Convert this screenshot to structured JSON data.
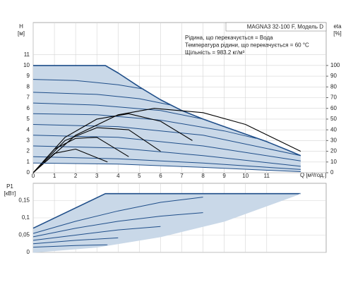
{
  "chart_data": [
    {
      "type": "line",
      "title": "MAGNA3 32-100 F, Модель D",
      "annotations": [
        "Рідина, що перекачується = Вода",
        "Температура рідини, що перекачується = 60 °C",
        "Щільність = 983.2 кг/м³"
      ],
      "y_label": "H",
      "y_unit": "[м]",
      "y2_label": "eta",
      "y2_unit": "[%]",
      "x_label": "Q [м³/год.]",
      "xlim": [
        0,
        13.8
      ],
      "ylim": [
        0,
        14
      ],
      "y2lim": [
        0,
        140
      ],
      "xticks": [
        0,
        1,
        2,
        3,
        4,
        5,
        6,
        7,
        8,
        9,
        10,
        11
      ],
      "yticks": [
        0,
        1,
        2,
        3,
        4,
        5,
        6,
        7,
        8,
        9,
        10,
        11
      ],
      "y2ticks": [
        0,
        10,
        20,
        30,
        40,
        50,
        60,
        70,
        80,
        90,
        100
      ],
      "grid": true,
      "fill": "#c9d8e8",
      "series": [
        {
          "color": "#1f4e89",
          "x": [
            0,
            3.4,
            4,
            5,
            6,
            7,
            8,
            9,
            10,
            11,
            12,
            12.6
          ],
          "values": [
            10,
            10,
            9.3,
            8.0,
            6.8,
            5.8,
            5.0,
            4.3,
            3.6,
            2.9,
            2.1,
            1.6
          ]
        },
        {
          "color": "#1f4e89",
          "x": [
            0,
            2,
            4,
            5.2
          ],
          "values": [
            8.7,
            8.6,
            8.2,
            7.8
          ]
        },
        {
          "color": "#1f4e89",
          "x": [
            0,
            3,
            5,
            6.5
          ],
          "values": [
            7.5,
            7.3,
            6.9,
            6.3
          ]
        },
        {
          "color": "#1f4e89",
          "x": [
            0,
            3,
            6,
            8
          ],
          "values": [
            6.5,
            6.3,
            5.8,
            5.0
          ]
        },
        {
          "color": "#1f4e89",
          "x": [
            0,
            3,
            6,
            9,
            10.5
          ],
          "values": [
            5.5,
            5.4,
            4.9,
            3.9,
            3.2
          ]
        },
        {
          "color": "#1f4e89",
          "x": [
            0,
            4,
            8,
            12.6
          ],
          "values": [
            4.5,
            4.3,
            3.5,
            1.6
          ]
        },
        {
          "color": "#1f4e89",
          "x": [
            0,
            4,
            8,
            12.6
          ],
          "values": [
            3.5,
            3.3,
            2.5,
            1.1
          ]
        },
        {
          "color": "#1f4e89",
          "x": [
            0,
            4,
            8,
            12.6
          ],
          "values": [
            2.5,
            2.3,
            1.6,
            0.6
          ]
        },
        {
          "color": "#1f4e89",
          "x": [
            0,
            4,
            8,
            12.6
          ],
          "values": [
            1.5,
            1.3,
            0.9,
            0.3
          ]
        },
        {
          "color": "#000000",
          "axis": "y2",
          "x": [
            0,
            2,
            4,
            5.7,
            8,
            10,
            12.6
          ],
          "values": [
            0,
            35,
            54,
            60,
            56,
            45,
            20
          ]
        },
        {
          "color": "#000000",
          "axis": "y2",
          "x": [
            0,
            1.5,
            3,
            4.5,
            6,
            7.5
          ],
          "values": [
            0,
            33,
            50,
            55,
            48,
            30
          ]
        },
        {
          "color": "#000000",
          "axis": "y2",
          "x": [
            0,
            1.5,
            3,
            4.5,
            6
          ],
          "values": [
            0,
            30,
            42,
            40,
            20
          ]
        },
        {
          "color": "#000000",
          "axis": "y2",
          "x": [
            0,
            1,
            2,
            3,
            4.5
          ],
          "values": [
            0,
            22,
            32,
            33,
            15
          ]
        },
        {
          "color": "#000000",
          "axis": "y2",
          "x": [
            0,
            1,
            2,
            3.5
          ],
          "values": [
            0,
            18,
            22,
            10
          ]
        },
        {
          "color": "#1f4e89",
          "x": [
            0,
            4,
            8,
            12.6
          ],
          "values": [
            0.9,
            0.8,
            0.5,
            0.1
          ]
        }
      ]
    },
    {
      "type": "line",
      "y_label": "P1",
      "y_unit": "[кВт]",
      "xlim": [
        0,
        13.8
      ],
      "ylim": [
        0,
        0.2
      ],
      "yticks": [
        0,
        {
          "value": 0.05,
          "label": "0,05"
        },
        {
          "value": 0.1,
          "label": "0,1"
        },
        {
          "value": 0.15,
          "label": "0,15"
        }
      ],
      "grid": true,
      "fill": "#c9d8e8",
      "series": [
        {
          "color": "#1f4e89",
          "x": [
            0,
            3.4,
            12.6
          ],
          "values": [
            0.07,
            0.17,
            0.17
          ]
        },
        {
          "color": "#1f4e89",
          "x": [
            0,
            2,
            4,
            6,
            8
          ],
          "values": [
            0.055,
            0.09,
            0.12,
            0.145,
            0.16
          ]
        },
        {
          "color": "#1f4e89",
          "x": [
            0,
            2,
            4,
            6,
            8
          ],
          "values": [
            0.045,
            0.07,
            0.09,
            0.105,
            0.115
          ]
        },
        {
          "color": "#1f4e89",
          "x": [
            0,
            2,
            4,
            6
          ],
          "values": [
            0.035,
            0.05,
            0.065,
            0.075
          ]
        },
        {
          "color": "#1f4e89",
          "x": [
            0,
            2,
            4
          ],
          "values": [
            0.025,
            0.035,
            0.042
          ]
        },
        {
          "color": "#1f4e89",
          "x": [
            0,
            2,
            3.5
          ],
          "values": [
            0.015,
            0.02,
            0.022
          ]
        },
        {
          "color": "#c9d8e8",
          "x": [
            0,
            3,
            6,
            9,
            12.6
          ],
          "values": [
            0,
            0.015,
            0.045,
            0.09,
            0.17
          ]
        }
      ]
    }
  ]
}
